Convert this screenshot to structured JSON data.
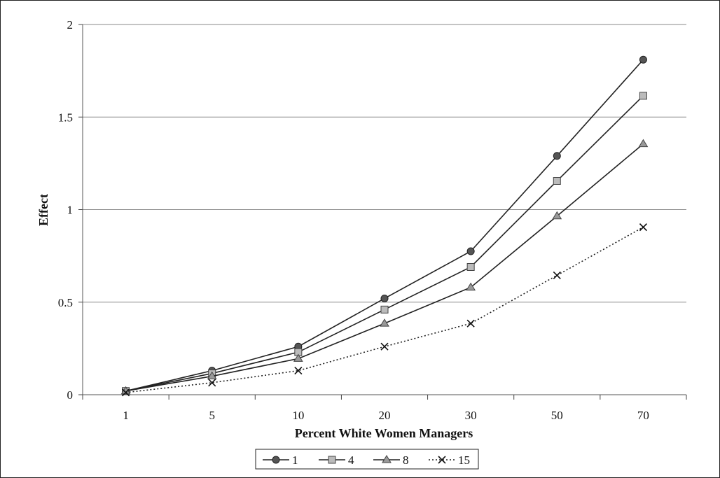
{
  "chart_data": {
    "type": "line",
    "title": "",
    "xlabel": "Percent White Women Managers",
    "ylabel": "Effect",
    "categories": [
      "1",
      "5",
      "10",
      "20",
      "30",
      "50",
      "70"
    ],
    "ylim": [
      0,
      2
    ],
    "yticks": [
      "0",
      "0.5",
      "1",
      "1.5",
      "2"
    ],
    "grid": "horizontal",
    "legend_position": "bottom",
    "series": [
      {
        "name": "1",
        "values": [
          0.02,
          0.13,
          0.26,
          0.52,
          0.775,
          1.29,
          1.81
        ],
        "marker": "circle",
        "dash": "solid",
        "color": "#222222",
        "marker_fill": "#555555"
      },
      {
        "name": "4",
        "values": [
          0.02,
          0.115,
          0.23,
          0.46,
          0.69,
          1.155,
          1.615
        ],
        "marker": "square",
        "dash": "solid",
        "color": "#222222",
        "marker_fill": "#bbbbbb"
      },
      {
        "name": "8",
        "values": [
          0.02,
          0.1,
          0.195,
          0.385,
          0.58,
          0.965,
          1.355
        ],
        "marker": "triangle",
        "dash": "solid",
        "color": "#222222",
        "marker_fill": "#999999"
      },
      {
        "name": "15",
        "values": [
          0.012,
          0.065,
          0.13,
          0.26,
          0.385,
          0.645,
          0.905
        ],
        "marker": "x",
        "dash": "dotted",
        "color": "#222222",
        "marker_fill": "none"
      }
    ]
  }
}
